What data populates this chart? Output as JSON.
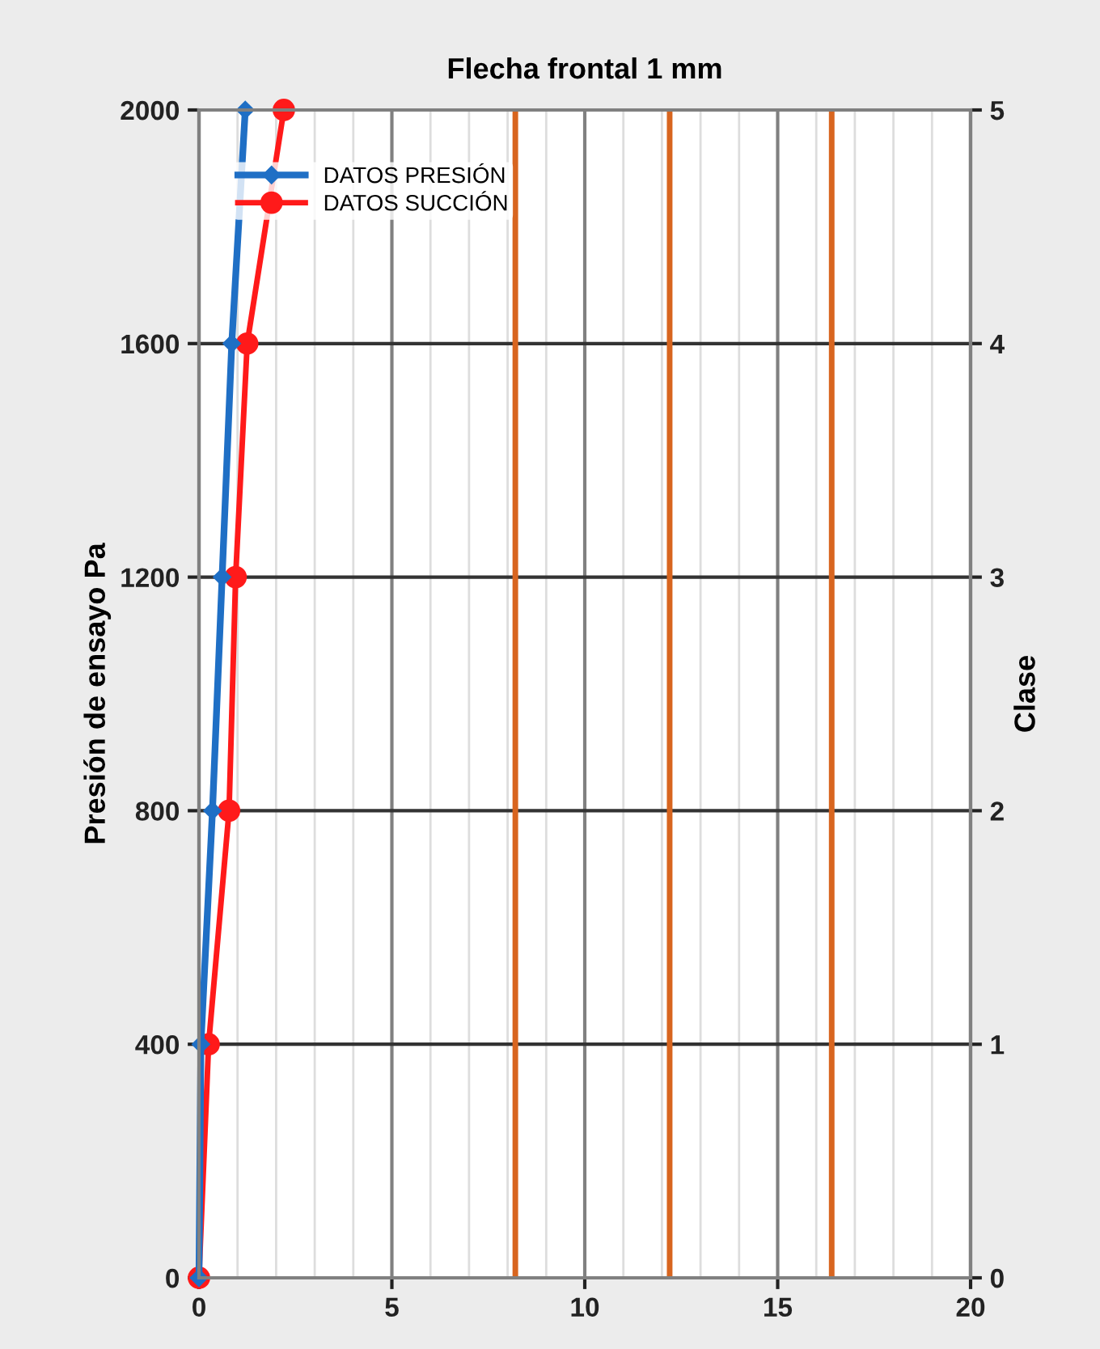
{
  "chart_data": {
    "type": "line",
    "title": "Flecha frontal 1 mm",
    "ylabel": "Presión de ensayo Pa",
    "y2label": "Clase",
    "xlim": [
      0,
      20
    ],
    "xticks": [
      0,
      5,
      10,
      15,
      20
    ],
    "ylim": [
      0,
      2000
    ],
    "yticks": [
      0,
      400,
      800,
      1200,
      1600,
      2000
    ],
    "y2lim": [
      0,
      5
    ],
    "y2ticks": [
      0,
      1,
      2,
      3,
      4,
      5
    ],
    "grid": true,
    "legend": "top left",
    "series": [
      {
        "name": "DATOS PRESIÓN",
        "color": "#1f6fc5",
        "marker": "diamond",
        "x": [
          0,
          0.05,
          0.35,
          0.6,
          0.85,
          1.2
        ],
        "values": [
          0,
          400,
          800,
          1200,
          1600,
          2000
        ]
      },
      {
        "name": "DATOS SUCCIÓN",
        "color": "#ff1a1a",
        "marker": "circle",
        "x": [
          0,
          0.25,
          0.78,
          0.95,
          1.25,
          2.2
        ],
        "values": [
          0,
          400,
          800,
          1200,
          1600,
          2000
        ]
      }
    ],
    "ref_lines": [
      {
        "axis": "x",
        "value": 8.2,
        "color": "#d8651f"
      },
      {
        "axis": "x",
        "value": 12.2,
        "color": "#d8651f"
      },
      {
        "axis": "x",
        "value": 16.4,
        "color": "#d8651f"
      }
    ]
  }
}
